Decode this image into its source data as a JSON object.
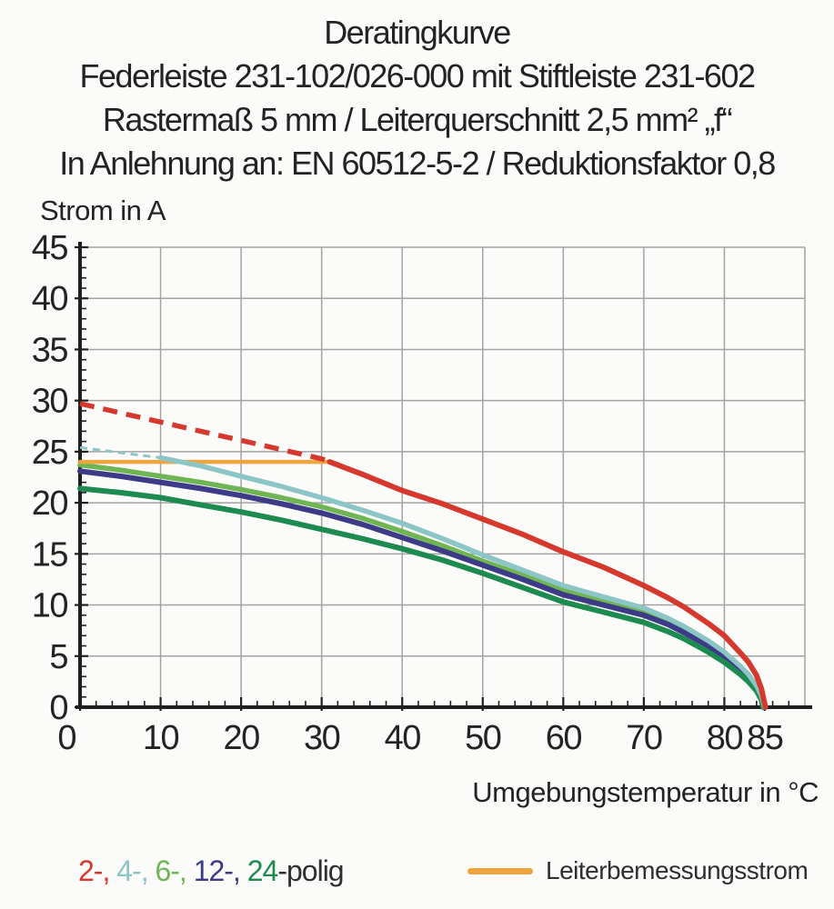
{
  "header": {
    "lines": [
      "Deratingkurve",
      "Federleiste 231-102/026-000 mit Stiftleiste 231-602",
      "Rastermaß 5 mm / Leiterquerschnitt 2,5 mm² „f“",
      "In Anlehnung an: EN 60512-5-2 / Reduktionsfaktor 0,8"
    ]
  },
  "chart_data": {
    "type": "line",
    "title": "Deratingkurve",
    "xlabel": "Umgebungstemperatur in °C",
    "ylabel": "Strom in A",
    "x_domain": [
      0,
      90
    ],
    "y_domain": [
      0,
      45
    ],
    "x_tick_labels": [
      0,
      10,
      20,
      30,
      40,
      50,
      60,
      70,
      80,
      85
    ],
    "x_grid_step": 10,
    "y_grid_step": 5,
    "x_minor_step": 2,
    "y_minor_step": 1,
    "grid": true,
    "grid_color": "#a3a3a3",
    "axis_color": "#1f1f1f",
    "legend_position": "bottom",
    "series": [
      {
        "name": "6-polig",
        "color": "#70b554",
        "width": 5.5,
        "points": [
          [
            0,
            23.7
          ],
          [
            5,
            23.2
          ],
          [
            10,
            22.6
          ],
          [
            15,
            22.0
          ],
          [
            20,
            21.3
          ],
          [
            25,
            20.5
          ],
          [
            30,
            19.6
          ],
          [
            35,
            18.5
          ],
          [
            40,
            17.2
          ],
          [
            45,
            15.8
          ],
          [
            50,
            14.3
          ],
          [
            55,
            12.9
          ],
          [
            60,
            11.4
          ],
          [
            65,
            10.4
          ],
          [
            70,
            9.3
          ],
          [
            73,
            8.4
          ],
          [
            75,
            7.6
          ],
          [
            78,
            6.2
          ],
          [
            80,
            5.1
          ],
          [
            82,
            3.8
          ],
          [
            83,
            3.0
          ],
          [
            84,
            2.0
          ],
          [
            84.6,
            1.0
          ],
          [
            84.9,
            0
          ]
        ]
      },
      {
        "name": "12-polig",
        "color": "#3d3a87",
        "width": 6,
        "points": [
          [
            0,
            23.1
          ],
          [
            5,
            22.6
          ],
          [
            10,
            22.0
          ],
          [
            15,
            21.4
          ],
          [
            20,
            20.7
          ],
          [
            25,
            19.9
          ],
          [
            30,
            19.0
          ],
          [
            35,
            17.9
          ],
          [
            40,
            16.6
          ],
          [
            45,
            15.3
          ],
          [
            50,
            13.9
          ],
          [
            55,
            12.5
          ],
          [
            60,
            11.0
          ],
          [
            65,
            10.0
          ],
          [
            70,
            9.0
          ],
          [
            73,
            8.1
          ],
          [
            75,
            7.3
          ],
          [
            78,
            6.0
          ],
          [
            80,
            4.9
          ],
          [
            82,
            3.6
          ],
          [
            83,
            2.8
          ],
          [
            84,
            1.8
          ],
          [
            84.6,
            0.9
          ],
          [
            84.9,
            0
          ]
        ]
      },
      {
        "name": "24-polig",
        "color": "#1d8a50",
        "width": 6,
        "points": [
          [
            0,
            21.4
          ],
          [
            5,
            21.0
          ],
          [
            10,
            20.5
          ],
          [
            15,
            19.8
          ],
          [
            20,
            19.1
          ],
          [
            25,
            18.3
          ],
          [
            30,
            17.4
          ],
          [
            35,
            16.5
          ],
          [
            40,
            15.5
          ],
          [
            45,
            14.4
          ],
          [
            50,
            13.1
          ],
          [
            55,
            11.7
          ],
          [
            60,
            10.3
          ],
          [
            65,
            9.3
          ],
          [
            70,
            8.3
          ],
          [
            73,
            7.4
          ],
          [
            75,
            6.7
          ],
          [
            78,
            5.4
          ],
          [
            80,
            4.4
          ],
          [
            82,
            3.2
          ],
          [
            83,
            2.5
          ],
          [
            84,
            1.6
          ],
          [
            84.6,
            0.7
          ],
          [
            84.8,
            0
          ]
        ]
      },
      {
        "name": "Leiterbemessungsstrom",
        "color": "#eea43f",
        "width": 4.5,
        "points": [
          [
            0,
            24
          ],
          [
            31,
            24
          ]
        ]
      },
      {
        "name": "4-polig",
        "color": "#8bc5c6",
        "width": 5.5,
        "dash_until": 10,
        "dash": [
          8,
          6
        ],
        "dash_width": 3,
        "points": [
          [
            0,
            25.4
          ],
          [
            5,
            24.9
          ],
          [
            10,
            24.4
          ],
          [
            15,
            23.6
          ],
          [
            20,
            22.6
          ],
          [
            25,
            21.6
          ],
          [
            30,
            20.5
          ],
          [
            35,
            19.3
          ],
          [
            40,
            18.0
          ],
          [
            45,
            16.5
          ],
          [
            50,
            14.9
          ],
          [
            55,
            13.4
          ],
          [
            60,
            11.9
          ],
          [
            65,
            10.8
          ],
          [
            70,
            9.7
          ],
          [
            73,
            8.7
          ],
          [
            75,
            7.9
          ],
          [
            78,
            6.5
          ],
          [
            80,
            5.4
          ],
          [
            82,
            4.0
          ],
          [
            83,
            3.2
          ],
          [
            84,
            2.1
          ],
          [
            84.6,
            1.1
          ],
          [
            85,
            0
          ]
        ]
      },
      {
        "name": "2-polig",
        "color": "#d5392e",
        "width": 6,
        "dash_until": 31,
        "dash": [
          16,
          10
        ],
        "dash_width": 5.5,
        "points": [
          [
            0,
            29.7
          ],
          [
            5,
            28.8
          ],
          [
            10,
            27.9
          ],
          [
            15,
            27.0
          ],
          [
            20,
            26.1
          ],
          [
            25,
            25.2
          ],
          [
            30,
            24.3
          ],
          [
            31,
            24.0
          ],
          [
            35,
            22.8
          ],
          [
            40,
            21.2
          ],
          [
            45,
            19.9
          ],
          [
            50,
            18.4
          ],
          [
            55,
            16.9
          ],
          [
            60,
            15.2
          ],
          [
            65,
            13.7
          ],
          [
            70,
            11.9
          ],
          [
            73,
            10.7
          ],
          [
            75,
            9.8
          ],
          [
            78,
            8.2
          ],
          [
            80,
            7.0
          ],
          [
            82,
            5.3
          ],
          [
            83,
            4.4
          ],
          [
            84,
            3.1
          ],
          [
            84.6,
            1.8
          ],
          [
            85.1,
            0
          ]
        ]
      }
    ]
  },
  "legend": {
    "poles": {
      "parts": [
        {
          "text": "2-, ",
          "color": "#d5392e"
        },
        {
          "text": "4-, ",
          "color": "#8bc5c6"
        },
        {
          "text": "6-, ",
          "color": "#70b554"
        },
        {
          "text": "12-, ",
          "color": "#3d3a87"
        },
        {
          "text": "24",
          "color": "#1d8a50"
        },
        {
          "text": "-polig",
          "color": "#2f2f33"
        }
      ]
    },
    "rated": {
      "label": "Leiterbemessungsstrom",
      "swatch_color": "#eea43f"
    }
  }
}
